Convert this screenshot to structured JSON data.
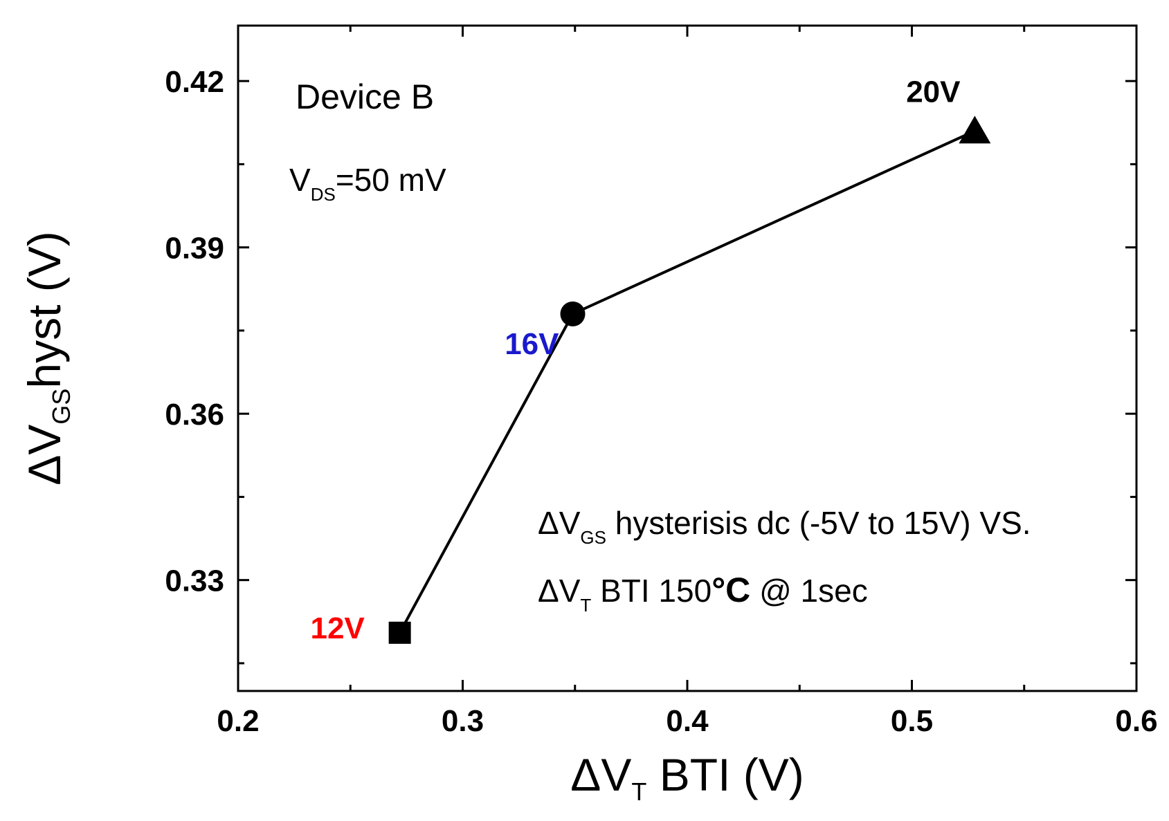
{
  "chart_data": {
    "type": "line",
    "title": "",
    "xlabel": {
      "prefix": "ΔV",
      "sub": "T",
      "suffix": " BTI (V)"
    },
    "ylabel": {
      "prefix": "ΔV",
      "sub": "GS",
      "suffix": "hyst (V)"
    },
    "xlim": [
      0.2,
      0.6
    ],
    "ylim": [
      0.31,
      0.43
    ],
    "xticks": [
      0.2,
      0.3,
      0.4,
      0.5,
      0.6
    ],
    "xtick_labels": [
      "0.2",
      "0.3",
      "0.4",
      "0.5",
      "0.6"
    ],
    "yticks": [
      0.33,
      0.36,
      0.39,
      0.42
    ],
    "ytick_labels": [
      "0.33",
      "0.36",
      "0.39",
      "0.42"
    ],
    "grid": false,
    "series": [
      {
        "points": [
          {
            "x": 0.272,
            "y": 0.3205,
            "label": "12V",
            "marker": "square",
            "label_color": "#ff0000"
          },
          {
            "x": 0.349,
            "y": 0.378,
            "label": "16V",
            "marker": "circle",
            "label_color": "#1a1acc"
          },
          {
            "x": 0.528,
            "y": 0.411,
            "label": "20V",
            "marker": "triangle",
            "label_color": "#000000"
          }
        ]
      }
    ],
    "annotations": {
      "device": "Device B",
      "vds": {
        "prefix": "V",
        "sub": "DS",
        "suffix": "=50 mV"
      },
      "line1": {
        "prefix": "ΔV",
        "sub": "GS",
        "suffix": " hysterisis dc (-5V to 15V) VS."
      },
      "line2": {
        "prefix": "ΔV",
        "sub": "T",
        "mid": " BTI 150",
        "bold": "°C",
        "suffix": " @ 1sec"
      }
    }
  }
}
